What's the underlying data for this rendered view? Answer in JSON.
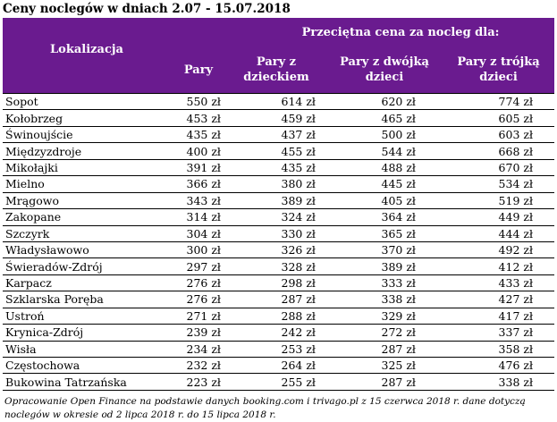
{
  "title": "Ceny noclegów w dniach 2.07 - 15.07.2018",
  "header": {
    "location": "Lokalizacja",
    "group": "Przeciętna cena za nocleg dla:",
    "columns": [
      "Pary",
      "Pary z dzieckiem",
      "Pary z dwójką dzieci",
      "Pary z trójką dzieci"
    ]
  },
  "rows": [
    {
      "city": "Sopot",
      "p1": "550 zł",
      "p2": "614 zł",
      "p3": "620 zł",
      "p4": "774 zł"
    },
    {
      "city": "Kołobrzeg",
      "p1": "453 zł",
      "p2": "459 zł",
      "p3": "465 zł",
      "p4": "605 zł"
    },
    {
      "city": "Świnoujście",
      "p1": "435 zł",
      "p2": "437 zł",
      "p3": "500 zł",
      "p4": "603 zł"
    },
    {
      "city": "Międzyzdroje",
      "p1": "400 zł",
      "p2": "455 zł",
      "p3": "544 zł",
      "p4": "668 zł"
    },
    {
      "city": "Mikołajki",
      "p1": "391 zł",
      "p2": "435 zł",
      "p3": "488 zł",
      "p4": "670 zł"
    },
    {
      "city": "Mielno",
      "p1": "366 zł",
      "p2": "380 zł",
      "p3": "445 zł",
      "p4": "534 zł"
    },
    {
      "city": "Mrągowo",
      "p1": "343 zł",
      "p2": "389 zł",
      "p3": "405 zł",
      "p4": "519 zł"
    },
    {
      "city": "Zakopane",
      "p1": "314 zł",
      "p2": "324 zł",
      "p3": "364 zł",
      "p4": "449 zł"
    },
    {
      "city": "Szczyrk",
      "p1": "304 zł",
      "p2": "330 zł",
      "p3": "365 zł",
      "p4": "444 zł"
    },
    {
      "city": "Władysławowo",
      "p1": "300 zł",
      "p2": "326 zł",
      "p3": "370 zł",
      "p4": "492 zł"
    },
    {
      "city": "Świeradów-Zdrój",
      "p1": "297 zł",
      "p2": "328 zł",
      "p3": "389 zł",
      "p4": "412 zł"
    },
    {
      "city": "Karpacz",
      "p1": "276 zł",
      "p2": "298 zł",
      "p3": "333 zł",
      "p4": "433 zł"
    },
    {
      "city": "Szklarska Poręba",
      "p1": "276 zł",
      "p2": "287 zł",
      "p3": "338 zł",
      "p4": "427 zł"
    },
    {
      "city": "Ustroń",
      "p1": "271 zł",
      "p2": "288 zł",
      "p3": "329 zł",
      "p4": "417 zł"
    },
    {
      "city": "Krynica-Zdrój",
      "p1": "239 zł",
      "p2": "242 zł",
      "p3": "272 zł",
      "p4": "337 zł"
    },
    {
      "city": "Wisła",
      "p1": "234 zł",
      "p2": "253 zł",
      "p3": "287 zł",
      "p4": "358 zł"
    },
    {
      "city": "Częstochowa",
      "p1": "232 zł",
      "p2": "264 zł",
      "p3": "325 zł",
      "p4": "476 zł"
    },
    {
      "city": "Bukowina Tatrzańska",
      "p1": "223 zł",
      "p2": "255 zł",
      "p3": "287 zł",
      "p4": "338 zł"
    }
  ],
  "note": "Opracowanie Open Finance na podstawie danych booking.com i trivago.pl z 15 czerwca 2018 r. dane dotyczą noclegów w okresie od 2 lipca 2018 r. do 15 lipca 2018 r."
}
